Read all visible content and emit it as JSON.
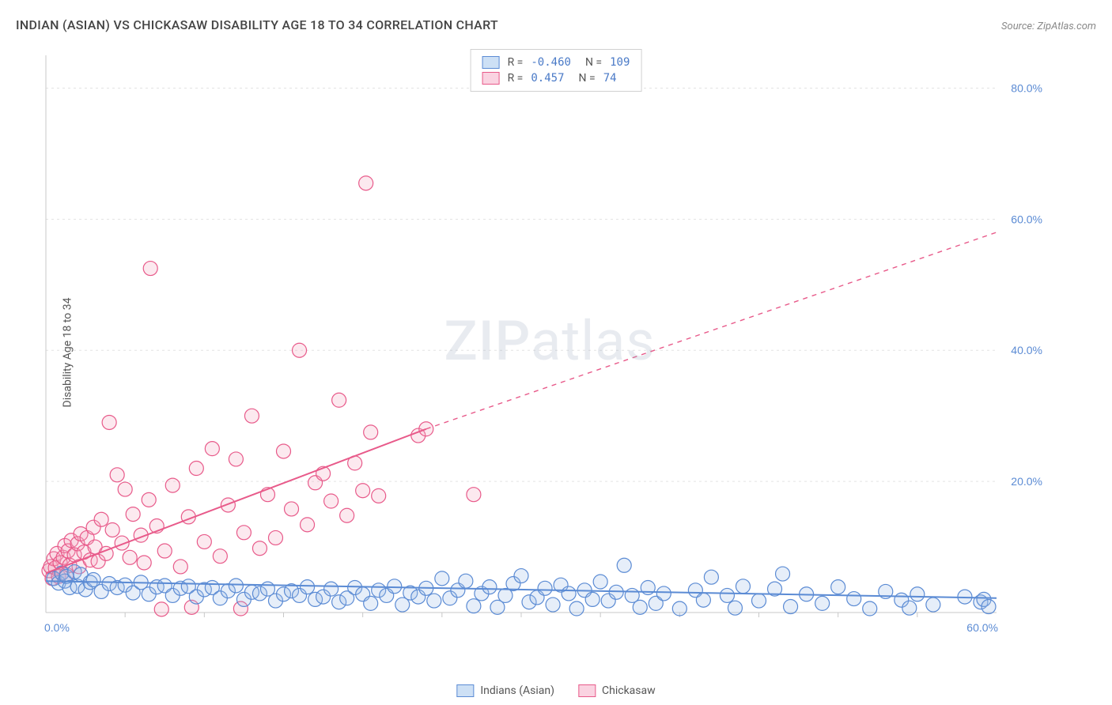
{
  "title": "INDIAN (ASIAN) VS CHICKASAW DISABILITY AGE 18 TO 34 CORRELATION CHART",
  "source": "Source: ZipAtlas.com",
  "y_axis_label": "Disability Age 18 to 34",
  "watermark": "ZIPatlas",
  "chart": {
    "type": "scatter",
    "xlim": [
      0,
      60
    ],
    "ylim": [
      0,
      85
    ],
    "x_ticks": [
      0,
      60
    ],
    "x_tick_labels": [
      "0.0%",
      "60.0%"
    ],
    "x_minor_ticks": [
      5,
      10,
      15,
      20,
      25,
      30,
      35,
      40,
      45,
      50,
      55
    ],
    "y_ticks": [
      20,
      40,
      60,
      80
    ],
    "y_tick_labels": [
      "20.0%",
      "40.0%",
      "60.0%",
      "80.0%"
    ],
    "grid_color": "#e3e3e3",
    "axis_color": "#c8c8c8",
    "background_color": "#ffffff",
    "tick_label_color": "#5b8bd4",
    "marker_radius": 9,
    "marker_stroke_width": 1.2,
    "marker_fill_opacity": 0.25,
    "trend_line_width": 2,
    "series": [
      {
        "name": "Indians (Asian)",
        "color_stroke": "#5b8bd4",
        "color_fill": "#9bbce6",
        "R": "-0.460",
        "N": "109",
        "trend": {
          "x1": 0,
          "y1": 4.8,
          "x2": 60,
          "y2": 2.2,
          "dash": false
        },
        "points": [
          [
            0.5,
            5.2
          ],
          [
            0.8,
            4.5
          ],
          [
            1.0,
            6.0
          ],
          [
            1.2,
            4.8
          ],
          [
            1.3,
            5.5
          ],
          [
            1.5,
            3.8
          ],
          [
            1.8,
            6.2
          ],
          [
            2.0,
            4.0
          ],
          [
            2.2,
            5.8
          ],
          [
            2.5,
            3.5
          ],
          [
            2.8,
            4.6
          ],
          [
            3.0,
            5.0
          ],
          [
            3.5,
            3.2
          ],
          [
            4.0,
            4.4
          ],
          [
            4.5,
            3.8
          ],
          [
            5.0,
            4.2
          ],
          [
            5.5,
            3.0
          ],
          [
            6.0,
            4.6
          ],
          [
            6.5,
            2.8
          ],
          [
            7.0,
            3.9
          ],
          [
            7.5,
            4.1
          ],
          [
            8.0,
            2.6
          ],
          [
            8.5,
            3.7
          ],
          [
            9.0,
            4.0
          ],
          [
            9.5,
            2.4
          ],
          [
            10.0,
            3.5
          ],
          [
            10.5,
            3.8
          ],
          [
            11.0,
            2.2
          ],
          [
            11.5,
            3.3
          ],
          [
            12.0,
            4.1
          ],
          [
            12.5,
            2.0
          ],
          [
            13.0,
            3.1
          ],
          [
            13.5,
            2.9
          ],
          [
            14.0,
            3.6
          ],
          [
            14.5,
            1.8
          ],
          [
            15.0,
            2.8
          ],
          [
            15.5,
            3.3
          ],
          [
            16.0,
            2.6
          ],
          [
            16.5,
            3.9
          ],
          [
            17.0,
            2.0
          ],
          [
            17.5,
            2.4
          ],
          [
            18.0,
            3.6
          ],
          [
            18.5,
            1.6
          ],
          [
            19.0,
            2.2
          ],
          [
            19.5,
            3.8
          ],
          [
            20.0,
            2.8
          ],
          [
            20.5,
            1.4
          ],
          [
            21.0,
            3.4
          ],
          [
            21.5,
            2.6
          ],
          [
            22.0,
            4.0
          ],
          [
            22.5,
            1.2
          ],
          [
            23.0,
            3.0
          ],
          [
            23.5,
            2.4
          ],
          [
            24.0,
            3.7
          ],
          [
            24.5,
            1.8
          ],
          [
            25.0,
            5.2
          ],
          [
            25.5,
            2.2
          ],
          [
            26.0,
            3.4
          ],
          [
            26.5,
            4.8
          ],
          [
            27.0,
            1.0
          ],
          [
            27.5,
            2.9
          ],
          [
            28.0,
            3.9
          ],
          [
            28.5,
            0.8
          ],
          [
            29.0,
            2.6
          ],
          [
            29.5,
            4.4
          ],
          [
            30.0,
            5.6
          ],
          [
            30.5,
            1.6
          ],
          [
            31.0,
            2.3
          ],
          [
            31.5,
            3.7
          ],
          [
            32.0,
            1.2
          ],
          [
            32.5,
            4.2
          ],
          [
            33.0,
            2.9
          ],
          [
            33.5,
            0.6
          ],
          [
            34.0,
            3.4
          ],
          [
            34.5,
            2.0
          ],
          [
            35.0,
            4.7
          ],
          [
            35.5,
            1.8
          ],
          [
            36.0,
            3.1
          ],
          [
            36.5,
            7.2
          ],
          [
            37.0,
            2.6
          ],
          [
            37.5,
            0.8
          ],
          [
            38.0,
            3.8
          ],
          [
            38.5,
            1.4
          ],
          [
            39.0,
            2.9
          ],
          [
            40.0,
            0.6
          ],
          [
            41.0,
            3.4
          ],
          [
            41.5,
            1.9
          ],
          [
            42.0,
            5.4
          ],
          [
            43.0,
            2.6
          ],
          [
            43.5,
            0.7
          ],
          [
            44.0,
            4.0
          ],
          [
            45.0,
            1.8
          ],
          [
            46.0,
            3.6
          ],
          [
            46.5,
            5.9
          ],
          [
            47.0,
            0.9
          ],
          [
            48.0,
            2.8
          ],
          [
            49.0,
            1.4
          ],
          [
            50.0,
            3.9
          ],
          [
            51.0,
            2.1
          ],
          [
            52.0,
            0.6
          ],
          [
            53.0,
            3.2
          ],
          [
            54.0,
            1.9
          ],
          [
            54.5,
            0.7
          ],
          [
            55.0,
            2.8
          ],
          [
            56.0,
            1.2
          ],
          [
            58.0,
            2.4
          ],
          [
            59.0,
            1.6
          ],
          [
            59.2,
            2.0
          ],
          [
            59.5,
            0.9
          ]
        ]
      },
      {
        "name": "Chickasaw",
        "color_stroke": "#e85a8a",
        "color_fill": "#f5a8c0",
        "R": " 0.457",
        "N": " 74",
        "trend": {
          "x1": 0,
          "y1": 6.0,
          "x2": 24,
          "y2": 28.0,
          "dash": false
        },
        "trend_ext": {
          "x1": 24,
          "y1": 28.0,
          "x2": 60,
          "y2": 58.0,
          "dash": true
        },
        "points": [
          [
            0.2,
            6.4
          ],
          [
            0.3,
            7.0
          ],
          [
            0.4,
            5.2
          ],
          [
            0.5,
            8.2
          ],
          [
            0.6,
            6.8
          ],
          [
            0.7,
            9.0
          ],
          [
            0.8,
            5.5
          ],
          [
            0.9,
            7.6
          ],
          [
            1.0,
            6.0
          ],
          [
            1.1,
            8.4
          ],
          [
            1.2,
            10.2
          ],
          [
            1.3,
            5.8
          ],
          [
            1.4,
            9.4
          ],
          [
            1.5,
            7.2
          ],
          [
            1.6,
            11.0
          ],
          [
            1.8,
            8.8
          ],
          [
            2.0,
            10.5
          ],
          [
            2.1,
            7.0
          ],
          [
            2.2,
            12.0
          ],
          [
            2.4,
            9.2
          ],
          [
            2.6,
            11.4
          ],
          [
            2.8,
            8.0
          ],
          [
            3.0,
            13.0
          ],
          [
            3.1,
            10.0
          ],
          [
            3.3,
            7.8
          ],
          [
            3.5,
            14.2
          ],
          [
            3.8,
            9.0
          ],
          [
            4.0,
            29.0
          ],
          [
            4.2,
            12.6
          ],
          [
            4.5,
            21.0
          ],
          [
            4.8,
            10.6
          ],
          [
            5.0,
            18.8
          ],
          [
            5.3,
            8.4
          ],
          [
            5.5,
            15.0
          ],
          [
            6.0,
            11.8
          ],
          [
            6.2,
            7.6
          ],
          [
            6.5,
            17.2
          ],
          [
            6.6,
            52.5
          ],
          [
            7.0,
            13.2
          ],
          [
            7.3,
            0.5
          ],
          [
            7.5,
            9.4
          ],
          [
            8.0,
            19.4
          ],
          [
            8.5,
            7.0
          ],
          [
            9.0,
            14.6
          ],
          [
            9.2,
            0.8
          ],
          [
            9.5,
            22.0
          ],
          [
            10.0,
            10.8
          ],
          [
            10.5,
            25.0
          ],
          [
            11.0,
            8.6
          ],
          [
            11.5,
            16.4
          ],
          [
            12.0,
            23.4
          ],
          [
            12.3,
            0.6
          ],
          [
            12.5,
            12.2
          ],
          [
            13.0,
            30.0
          ],
          [
            13.5,
            9.8
          ],
          [
            14.0,
            18.0
          ],
          [
            14.5,
            11.4
          ],
          [
            15.0,
            24.6
          ],
          [
            15.5,
            15.8
          ],
          [
            16.0,
            40.0
          ],
          [
            16.5,
            13.4
          ],
          [
            17.0,
            19.8
          ],
          [
            17.5,
            21.2
          ],
          [
            18.0,
            17.0
          ],
          [
            18.5,
            32.4
          ],
          [
            19.0,
            14.8
          ],
          [
            19.5,
            22.8
          ],
          [
            20.0,
            18.6
          ],
          [
            20.2,
            65.5
          ],
          [
            20.5,
            27.5
          ],
          [
            21.0,
            17.8
          ],
          [
            23.5,
            27.0
          ],
          [
            24.0,
            28.0
          ],
          [
            27.0,
            18.0
          ]
        ]
      }
    ],
    "legend_top": [
      {
        "swatch_fill": "#cde0f5",
        "swatch_stroke": "#5b8bd4",
        "R": "-0.460",
        "N": "109"
      },
      {
        "swatch_fill": "#fad3e1",
        "swatch_stroke": "#e85a8a",
        "R": " 0.457",
        "N": " 74"
      }
    ],
    "legend_bottom": [
      {
        "swatch_fill": "#cde0f5",
        "swatch_stroke": "#5b8bd4",
        "label": "Indians (Asian)"
      },
      {
        "swatch_fill": "#fad3e1",
        "swatch_stroke": "#e85a8a",
        "label": "Chickasaw"
      }
    ]
  }
}
